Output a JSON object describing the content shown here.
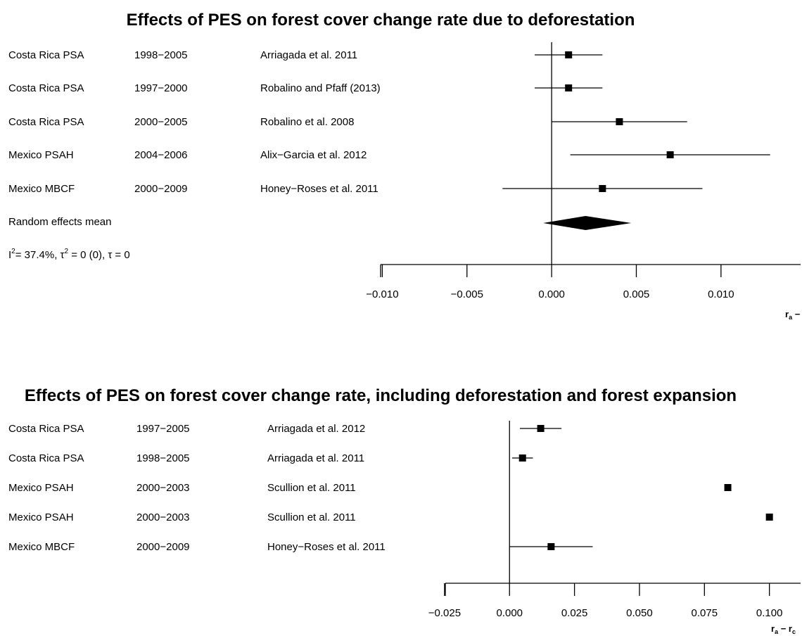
{
  "chart_data": [
    {
      "type": "forest",
      "title": "Effects of PES on forest cover change rate due to deforestation",
      "xlabel": "r_a − r_c",
      "xlabel_main": "r",
      "xlabel_sub1": "a",
      "xlabel_sub2": "c",
      "xlim": [
        -0.0101,
        0.0147
      ],
      "ticks": [
        -0.01,
        -0.005,
        0.0,
        0.005,
        0.01
      ],
      "tick_labels": [
        "−0.010",
        "−0.005",
        "0.000",
        "0.005",
        "0.010"
      ],
      "reference_line": 0,
      "studies": [
        {
          "program": "Costa Rica PSA",
          "period": "1998−2005",
          "source": "Arriagada et al. 2011",
          "estimate": 0.001,
          "ci_low": -0.001,
          "ci_high": 0.003
        },
        {
          "program": "Costa Rica PSA",
          "period": "1997−2000",
          "source": "Robalino and Pfaff (2013)",
          "estimate": 0.001,
          "ci_low": -0.001,
          "ci_high": 0.003
        },
        {
          "program": "Costa Rica PSA",
          "period": "2000−2005",
          "source": "Robalino et al. 2008",
          "estimate": 0.004,
          "ci_low": 0.0,
          "ci_high": 0.008
        },
        {
          "program": "Mexico PSAH",
          "period": "2004−2006",
          "source": "Alix−Garcia et al. 2012",
          "estimate": 0.007,
          "ci_low": 0.0011,
          "ci_high": 0.0129
        },
        {
          "program": "Mexico MBCF",
          "period": "2000−2009",
          "source": "Honey−Roses et al. 2011",
          "estimate": 0.003,
          "ci_low": -0.0029,
          "ci_high": 0.0089
        }
      ],
      "summary": {
        "label": "Random effects mean",
        "estimate": 0.002,
        "ci_low": -0.0005,
        "ci_high": 0.0047
      },
      "heterogeneity": {
        "prefix": "I",
        "i2": "= 37.4%, ",
        "tau": "τ",
        "tau2": " = 0 (0), ",
        "tau_sym": "τ",
        "tau_val": " = 0",
        "sup": "2"
      }
    },
    {
      "type": "forest",
      "title": "Effects of PES on forest cover change rate, including deforestation and forest expansion",
      "xlabel": "r_a − r_c",
      "xlabel_main": "r",
      "xlabel_sub1": "a",
      "xlabel_sub2": "c",
      "xlim": [
        -0.0247,
        0.112
      ],
      "ticks": [
        -0.025,
        0.0,
        0.025,
        0.05,
        0.075,
        0.1
      ],
      "tick_labels": [
        "−0.025",
        "0.000",
        "0.025",
        "0.050",
        "0.075",
        "0.100"
      ],
      "reference_line": 0,
      "studies": [
        {
          "program": "Costa Rica PSA",
          "period": "1997−2005",
          "source": "Arriagada et al. 2012",
          "estimate": 0.012,
          "ci_low": 0.004,
          "ci_high": 0.02
        },
        {
          "program": "Costa Rica PSA",
          "period": "1998−2005",
          "source": "Arriagada et al. 2011",
          "estimate": 0.005,
          "ci_low": 0.001,
          "ci_high": 0.009
        },
        {
          "program": "Mexico PSAH",
          "period": "2000−2003",
          "source": "Scullion et al. 2011",
          "estimate": 0.084,
          "ci_low": null,
          "ci_high": null
        },
        {
          "program": "Mexico PSAH",
          "period": "2000−2003",
          "source": "Scullion et al. 2011",
          "estimate": 0.1,
          "ci_low": null,
          "ci_high": null
        },
        {
          "program": "Mexico MBCF",
          "period": "2000−2009",
          "source": "Honey−Roses et al. 2011",
          "estimate": 0.016,
          "ci_low": 0.0,
          "ci_high": 0.032
        }
      ]
    }
  ]
}
